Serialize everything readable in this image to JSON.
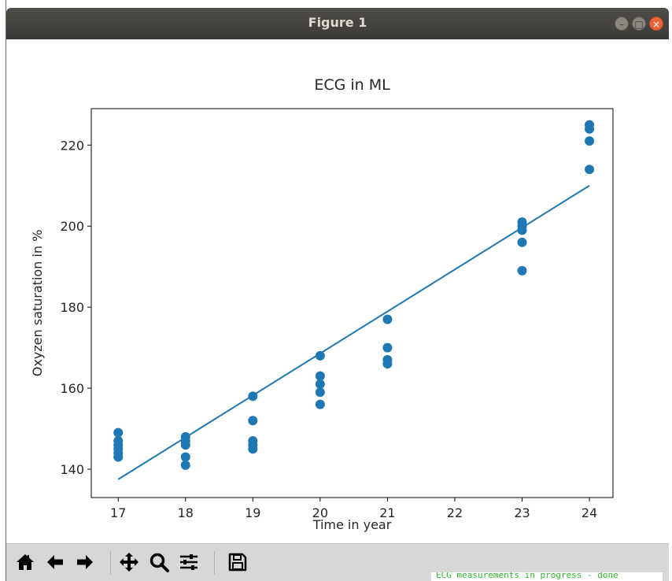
{
  "window": {
    "title": "Figure 1"
  },
  "chart_data": {
    "type": "scatter",
    "title": "ECG in ML",
    "xlabel": "Time in year",
    "ylabel": "Oxyzen saturation in %",
    "xlim": [
      16.6,
      24.35
    ],
    "ylim": [
      133,
      229
    ],
    "xticks": [
      17,
      18,
      19,
      20,
      21,
      22,
      23,
      24
    ],
    "yticks": [
      140,
      160,
      180,
      200,
      220
    ],
    "grid": false,
    "color": "#1f77b4",
    "points": [
      {
        "x": 17,
        "y": 143
      },
      {
        "x": 17,
        "y": 144
      },
      {
        "x": 17,
        "y": 145
      },
      {
        "x": 17,
        "y": 146
      },
      {
        "x": 17,
        "y": 147
      },
      {
        "x": 17,
        "y": 149
      },
      {
        "x": 18,
        "y": 141
      },
      {
        "x": 18,
        "y": 143
      },
      {
        "x": 18,
        "y": 146
      },
      {
        "x": 18,
        "y": 147
      },
      {
        "x": 18,
        "y": 148
      },
      {
        "x": 19,
        "y": 145
      },
      {
        "x": 19,
        "y": 146
      },
      {
        "x": 19,
        "y": 147
      },
      {
        "x": 19,
        "y": 152
      },
      {
        "x": 19,
        "y": 158
      },
      {
        "x": 20,
        "y": 156
      },
      {
        "x": 20,
        "y": 159
      },
      {
        "x": 20,
        "y": 161
      },
      {
        "x": 20,
        "y": 163
      },
      {
        "x": 20,
        "y": 168
      },
      {
        "x": 21,
        "y": 166
      },
      {
        "x": 21,
        "y": 167
      },
      {
        "x": 21,
        "y": 170
      },
      {
        "x": 21,
        "y": 177
      },
      {
        "x": 23,
        "y": 189
      },
      {
        "x": 23,
        "y": 196
      },
      {
        "x": 23,
        "y": 199
      },
      {
        "x": 23,
        "y": 200
      },
      {
        "x": 23,
        "y": 201
      },
      {
        "x": 24,
        "y": 214
      },
      {
        "x": 24,
        "y": 221
      },
      {
        "x": 24,
        "y": 224
      },
      {
        "x": 24,
        "y": 225
      }
    ],
    "fit_line": {
      "x": [
        17,
        24
      ],
      "y": [
        137.5,
        210
      ]
    }
  },
  "toolbar": {
    "buttons": [
      "home-icon",
      "back-icon",
      "forward-icon",
      "pan-icon",
      "zoom-icon",
      "configure-subplots-icon",
      "save-icon"
    ]
  },
  "terminal": {
    "text": "ECG measurements in progress - done"
  }
}
